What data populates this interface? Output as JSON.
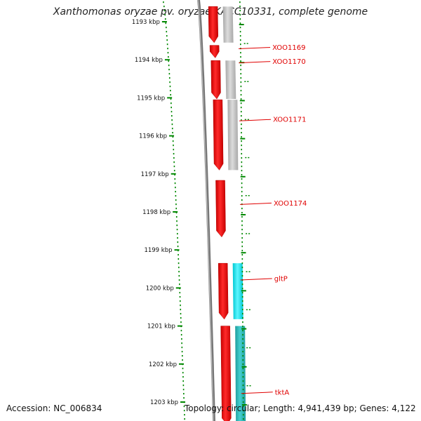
{
  "title": "Xanthomonas oryzae pv. oryzae KACC10331, complete genome",
  "footer": {
    "accession": "Accession: NC_006834",
    "summary": "Topology: circular; Length: 4,941,439 bp; Genes: 4,122"
  },
  "scale": {
    "unit": "kbp",
    "ticks": [
      {
        "value": 1193,
        "label": "1193 kbp"
      },
      {
        "value": 1194,
        "label": "1194 kbp"
      },
      {
        "value": 1195,
        "label": "1195 kbp"
      },
      {
        "value": 1196,
        "label": "1196 kbp"
      },
      {
        "value": 1197,
        "label": "1197 kbp"
      },
      {
        "value": 1198,
        "label": "1198 kbp"
      },
      {
        "value": 1199,
        "label": "1199 kbp"
      },
      {
        "value": 1200,
        "label": "1200 kbp"
      },
      {
        "value": 1201,
        "label": "1201 kbp"
      },
      {
        "value": 1202,
        "label": "1202 kbp"
      },
      {
        "value": 1203,
        "label": "1203 kbp"
      }
    ]
  },
  "colors": {
    "cds": "#ee0000",
    "cog_gray": "#bcbcbc",
    "cog_cyan": "#00e5ee",
    "cog_teal": "#2ab8b8",
    "backbone": "#777777",
    "tick": "#008800",
    "label": "#e00000"
  },
  "genes": [
    {
      "name": "",
      "start": 1192.6,
      "end": 1193.55,
      "strand": "-",
      "cog": "gray"
    },
    {
      "name": "XOO1169",
      "start": 1193.62,
      "end": 1193.95,
      "strand": "-",
      "cog": "none"
    },
    {
      "name": "XOO1170",
      "start": 1194.02,
      "end": 1195.03,
      "strand": "-",
      "cog": "gray"
    },
    {
      "name": "XOO1171",
      "start": 1195.05,
      "end": 1196.9,
      "strand": "-",
      "cog": "gray"
    },
    {
      "name": "XOO1174",
      "start": 1197.17,
      "end": 1198.66,
      "strand": "-",
      "cog": "none"
    },
    {
      "name": "gltP",
      "start": 1199.35,
      "end": 1200.82,
      "strand": "-",
      "cog": "cyan"
    },
    {
      "name": "tktA",
      "start": 1201.0,
      "end": 1203.6,
      "strand": "-",
      "cog": "teal"
    }
  ]
}
